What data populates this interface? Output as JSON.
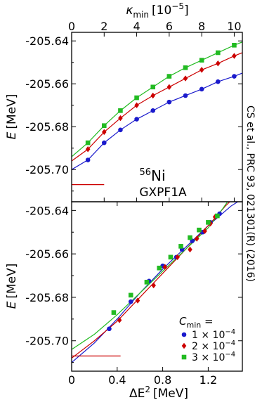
{
  "chart_data": [
    {
      "type": "scatter",
      "panel": "top",
      "xlabel_top": "κ",
      "xlabel_top_sub": "min",
      "xlabel_top_unit": "[10",
      "xlabel_top_exp": "−5",
      "xlabel_top_close": "]",
      "ylabel_italic": "E",
      "ylabel_unit": "[MeV]",
      "xlim": [
        0,
        10.5
      ],
      "ylim": [
        -205.715,
        -205.636
      ],
      "x_ticks": [
        "0",
        "2",
        "4",
        "6",
        "8",
        "10"
      ],
      "x_tick_values": [
        0,
        2,
        4,
        6,
        8,
        10
      ],
      "y_ticks": [
        "-205.64",
        "-205.66",
        "-205.68",
        "-205.70"
      ],
      "y_tick_values": [
        -205.64,
        -205.66,
        -205.68,
        -205.7
      ],
      "reference_line": {
        "x": [
          0,
          2
        ],
        "y": -205.707,
        "color": "#cc0000"
      },
      "nucleus_mass": "56",
      "nucleus_symbol": "Ni",
      "interaction": "GXPF1A",
      "series": [
        {
          "color": "#1a1acc",
          "marker": "circle",
          "points": [
            [
              1,
              -205.6955
            ],
            [
              2,
              -205.6875
            ],
            [
              3,
              -205.6815
            ],
            [
              4,
              -205.6765
            ],
            [
              5,
              -205.6725
            ],
            [
              6,
              -205.6685
            ],
            [
              7,
              -205.6655
            ],
            [
              8,
              -205.6625
            ],
            [
              9,
              -205.659
            ],
            [
              10,
              -205.6565
            ]
          ],
          "curve": [
            [
              0,
              -205.7
            ],
            [
              1,
              -205.6955
            ],
            [
              2,
              -205.6875
            ],
            [
              3,
              -205.6815
            ],
            [
              4,
              -205.6765
            ],
            [
              5,
              -205.6725
            ],
            [
              6,
              -205.6685
            ],
            [
              7,
              -205.6655
            ],
            [
              8,
              -205.6625
            ],
            [
              9,
              -205.659
            ],
            [
              10,
              -205.6565
            ],
            [
              10.5,
              -205.655
            ]
          ]
        },
        {
          "color": "#cc0000",
          "marker": "diamond",
          "points": [
            [
              1,
              -205.6905
            ],
            [
              2,
              -205.6825
            ],
            [
              3,
              -205.676
            ],
            [
              4,
              -205.67
            ],
            [
              5,
              -205.6655
            ],
            [
              6,
              -205.6615
            ],
            [
              7,
              -205.6575
            ],
            [
              8,
              -205.6535
            ],
            [
              9,
              -205.6505
            ],
            [
              10,
              -205.647
            ]
          ],
          "curve": [
            [
              0,
              -205.696
            ],
            [
              1,
              -205.6905
            ],
            [
              2,
              -205.6825
            ],
            [
              3,
              -205.676
            ],
            [
              4,
              -205.67
            ],
            [
              5,
              -205.6655
            ],
            [
              6,
              -205.6615
            ],
            [
              7,
              -205.6575
            ],
            [
              8,
              -205.6535
            ],
            [
              9,
              -205.6505
            ],
            [
              10,
              -205.647
            ],
            [
              10.5,
              -205.6455
            ]
          ]
        },
        {
          "color": "#22bb22",
          "marker": "square",
          "points": [
            [
              1,
              -205.6875
            ],
            [
              2,
              -205.6795
            ],
            [
              3,
              -205.6725
            ],
            [
              4,
              -205.6665
            ],
            [
              5,
              -205.6615
            ],
            [
              6,
              -205.6565
            ],
            [
              7,
              -205.6525
            ],
            [
              8,
              -205.649
            ],
            [
              9,
              -205.6455
            ],
            [
              10,
              -205.642
            ]
          ],
          "curve": [
            [
              0,
              -205.694
            ],
            [
              1,
              -205.6875
            ],
            [
              2,
              -205.6795
            ],
            [
              3,
              -205.6725
            ],
            [
              4,
              -205.6665
            ],
            [
              5,
              -205.6615
            ],
            [
              6,
              -205.6565
            ],
            [
              7,
              -205.6525
            ],
            [
              8,
              -205.649
            ],
            [
              9,
              -205.6455
            ],
            [
              10,
              -205.642
            ],
            [
              10.5,
              -205.6405
            ]
          ]
        }
      ]
    },
    {
      "type": "scatter",
      "panel": "bottom",
      "xlabel_symbol": "ΔE",
      "xlabel_exp": "2",
      "xlabel_unit": "[MeV]",
      "ylabel_italic": "E",
      "ylabel_unit": "[MeV]",
      "xlim": [
        0,
        1.5
      ],
      "ylim": [
        -205.714,
        -205.636
      ],
      "x_ticks": [
        "0",
        "0.4",
        "0.8",
        "1.2"
      ],
      "x_tick_values": [
        0,
        0.4,
        0.8,
        1.2
      ],
      "y_ticks": [
        "-205.64",
        "-205.66",
        "-205.68",
        "-205.70"
      ],
      "y_tick_values": [
        -205.64,
        -205.66,
        -205.68,
        -205.7
      ],
      "reference_line": {
        "x": [
          0,
          0.43
        ],
        "y": -205.707,
        "color": "#cc0000"
      },
      "legend_title": "C",
      "legend_title_sub": "min",
      "legend_title_suffix": " =",
      "legend_position": "lower-right",
      "series": [
        {
          "color": "#1a1acc",
          "marker": "circle",
          "label_coef": "1 × 10",
          "label_exp": "−4",
          "points": [
            [
              0.33,
              -205.6945
            ],
            [
              0.52,
              -205.682
            ],
            [
              0.68,
              -205.6725
            ],
            [
              0.8,
              -205.6655
            ],
            [
              0.92,
              -205.6615
            ],
            [
              0.97,
              -205.658
            ],
            [
              1.06,
              -205.654
            ],
            [
              1.15,
              -205.65
            ],
            [
              1.22,
              -205.6455
            ],
            [
              1.3,
              -205.6415
            ]
          ],
          "curve": [
            [
              0,
              -205.71
            ],
            [
              0.2,
              -205.701
            ],
            [
              0.4,
              -205.69
            ],
            [
              0.6,
              -205.678
            ],
            [
              0.8,
              -205.667
            ],
            [
              1.0,
              -205.657
            ],
            [
              1.2,
              -205.647
            ],
            [
              1.4,
              -205.638
            ],
            [
              1.46,
              -205.636
            ]
          ]
        },
        {
          "color": "#cc0000",
          "marker": "diamond",
          "label_coef": "2 × 10",
          "label_exp": "−4",
          "points": [
            [
              0.42,
              -205.6905
            ],
            [
              0.58,
              -205.6815
            ],
            [
              0.72,
              -205.6745
            ],
            [
              0.82,
              -205.666
            ],
            [
              0.93,
              -205.6615
            ],
            [
              1.04,
              -205.658
            ],
            [
              1.1,
              -205.653
            ],
            [
              1.17,
              -205.6495
            ],
            [
              1.22,
              -205.646
            ],
            [
              1.26,
              -205.643
            ]
          ],
          "curve": [
            [
              0,
              -205.708
            ],
            [
              0.2,
              -205.7
            ],
            [
              0.4,
              -205.691
            ],
            [
              0.6,
              -205.68
            ],
            [
              0.8,
              -205.669
            ],
            [
              1.0,
              -205.658
            ],
            [
              1.2,
              -205.647
            ],
            [
              1.35,
              -205.638
            ],
            [
              1.39,
              -205.636
            ]
          ]
        },
        {
          "color": "#22bb22",
          "marker": "square",
          "label_coef": "3 × 10",
          "label_exp": "−4",
          "points": [
            [
              0.37,
              -205.687
            ],
            [
              0.52,
              -205.679
            ],
            [
              0.66,
              -205.673
            ],
            [
              0.77,
              -205.6665
            ],
            [
              0.87,
              -205.6615
            ],
            [
              0.96,
              -205.6565
            ],
            [
              1.04,
              -205.6525
            ],
            [
              1.12,
              -205.649
            ],
            [
              1.2,
              -205.6455
            ],
            [
              1.28,
              -205.6425
            ]
          ],
          "curve": [
            [
              0,
              -205.704
            ],
            [
              0.2,
              -205.697
            ],
            [
              0.4,
              -205.688
            ],
            [
              0.6,
              -205.678
            ],
            [
              0.8,
              -205.668
            ],
            [
              1.0,
              -205.658
            ],
            [
              1.2,
              -205.648
            ],
            [
              1.33,
              -205.639
            ],
            [
              1.37,
              -205.636
            ]
          ]
        }
      ]
    }
  ],
  "citation": "CS et al., PRC 93, 021301(R) (2016)",
  "citation_color": "#999999"
}
